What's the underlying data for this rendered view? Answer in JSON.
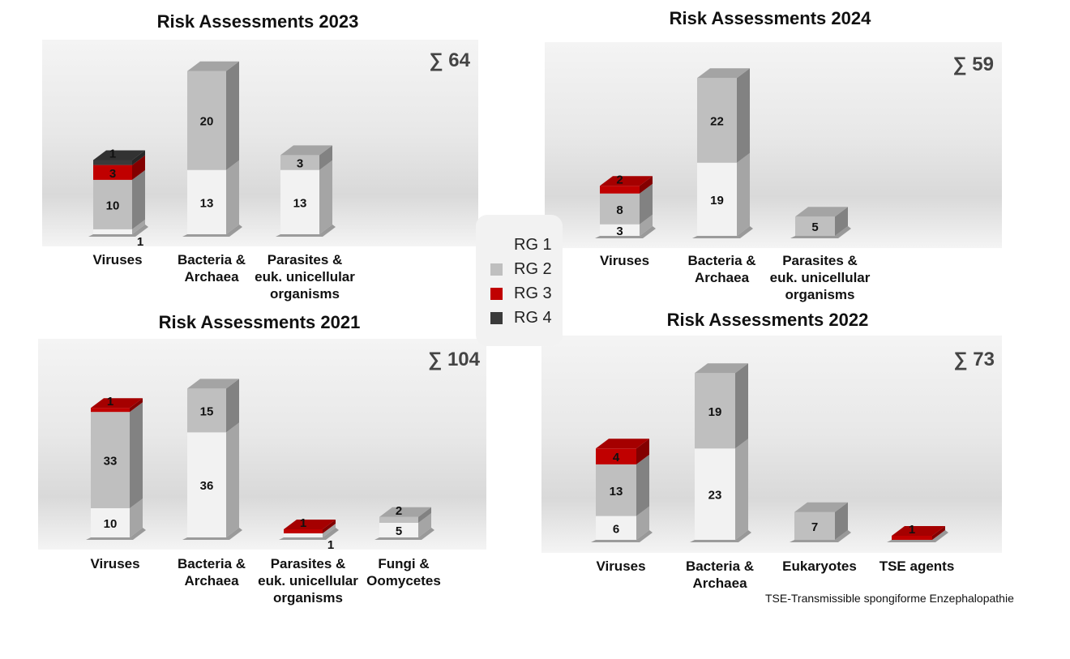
{
  "colors": {
    "RG 1": "#f2f2f2",
    "RG 2": "#bfbfbf",
    "RG 3": "#c00000",
    "RG 4": "#3a3a3a"
  },
  "legend": [
    "RG 1",
    "RG 2",
    "RG 3",
    "RG 4"
  ],
  "footnote": "TSE-Transmissible spongiforme Enzephalopathie",
  "chart_data": [
    {
      "type": "bar",
      "stacked": true,
      "style": "3d-column",
      "title": "Risk Assessments 2023",
      "total_label": "∑ 64",
      "categories": [
        [
          "Viruses"
        ],
        [
          "Bacteria &",
          "Archaea"
        ],
        [
          "Parasites &",
          "euk. unicellular",
          "organisms"
        ]
      ],
      "series": [
        {
          "name": "RG 1",
          "values": [
            1,
            13,
            13
          ]
        },
        {
          "name": "RG 2",
          "values": [
            10,
            20,
            3
          ]
        },
        {
          "name": "RG 3",
          "values": [
            3,
            0,
            0
          ]
        },
        {
          "name": "RG 4",
          "values": [
            1,
            0,
            0
          ]
        }
      ]
    },
    {
      "type": "bar",
      "stacked": true,
      "style": "3d-column",
      "title": "Risk Assessments 2024",
      "total_label": "∑ 59",
      "categories": [
        [
          "Viruses"
        ],
        [
          "Bacteria &",
          "Archaea"
        ],
        [
          "Parasites &",
          "euk. unicellular",
          "organisms"
        ]
      ],
      "series": [
        {
          "name": "RG 1",
          "values": [
            3,
            19,
            0
          ]
        },
        {
          "name": "RG 2",
          "values": [
            8,
            22,
            5
          ]
        },
        {
          "name": "RG 3",
          "values": [
            2,
            0,
            0
          ]
        },
        {
          "name": "RG 4",
          "values": [
            0,
            0,
            0
          ]
        }
      ]
    },
    {
      "type": "bar",
      "stacked": true,
      "style": "3d-column",
      "title": "Risk Assessments 2021",
      "total_label": "∑ 104",
      "categories": [
        [
          "Viruses"
        ],
        [
          "Bacteria &",
          "Archaea"
        ],
        [
          "Parasites &",
          "euk. unicellular",
          "organisms"
        ],
        [
          "Fungi &",
          "Oomycetes"
        ]
      ],
      "series": [
        {
          "name": "RG 1",
          "values": [
            10,
            36,
            1,
            5
          ]
        },
        {
          "name": "RG 2",
          "values": [
            33,
            15,
            0,
            2
          ]
        },
        {
          "name": "RG 3",
          "values": [
            1,
            0,
            1,
            0
          ]
        },
        {
          "name": "RG 4",
          "values": [
            0,
            0,
            0,
            0
          ]
        }
      ]
    },
    {
      "type": "bar",
      "stacked": true,
      "style": "3d-column",
      "title": "Risk Assessments 2022",
      "total_label": "∑ 73",
      "categories": [
        [
          "Viruses"
        ],
        [
          "Bacteria &",
          "Archaea"
        ],
        [
          "Eukaryotes"
        ],
        [
          "TSE agents"
        ]
      ],
      "series": [
        {
          "name": "RG 1",
          "values": [
            6,
            23,
            0,
            0
          ]
        },
        {
          "name": "RG 2",
          "values": [
            13,
            19,
            7,
            0
          ]
        },
        {
          "name": "RG 3",
          "values": [
            4,
            0,
            0,
            1
          ]
        },
        {
          "name": "RG 4",
          "values": [
            0,
            0,
            0,
            0
          ]
        }
      ]
    }
  ]
}
